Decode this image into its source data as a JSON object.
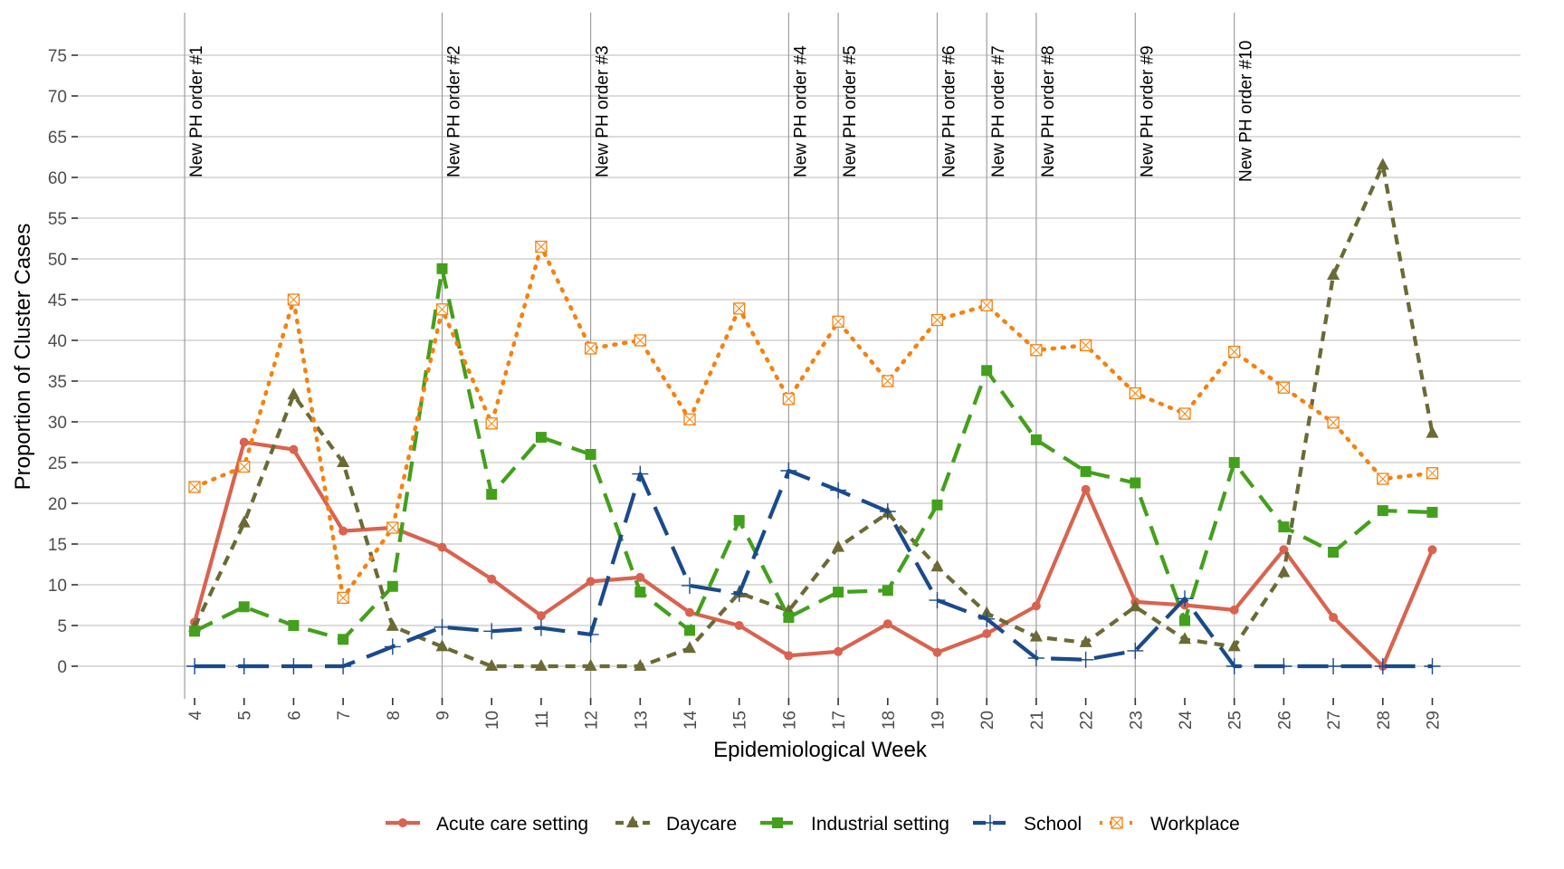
{
  "chart_data": {
    "type": "line",
    "title": "",
    "xlabel": "Epidemiological Week",
    "ylabel": "Proportion of Cluster Cases",
    "x": [
      4,
      5,
      6,
      7,
      8,
      9,
      10,
      11,
      12,
      13,
      14,
      15,
      16,
      17,
      18,
      19,
      20,
      21,
      22,
      23,
      24,
      25,
      26,
      27,
      28,
      29
    ],
    "x_tick_labels": [
      "4",
      "5",
      "6",
      "7",
      "8",
      "9",
      "10",
      "11",
      "12",
      "13",
      "14",
      "15",
      "16",
      "17",
      "18",
      "19",
      "20",
      "21",
      "22",
      "23",
      "24",
      "25",
      "26",
      "27",
      "28",
      "29"
    ],
    "ylim": [
      0,
      75
    ],
    "y_ticks": [
      0,
      5,
      10,
      15,
      20,
      25,
      30,
      35,
      40,
      45,
      50,
      55,
      60,
      65,
      70,
      75
    ],
    "y_tick_labels": [
      "0",
      "5",
      "10",
      "15",
      "20",
      "25",
      "30",
      "35",
      "40",
      "45",
      "50",
      "55",
      "60",
      "65",
      "70",
      "75"
    ],
    "grid": "horizontal",
    "legend_position": "bottom",
    "series": [
      {
        "name": "Acute care setting",
        "color": "#d9634f",
        "line": "solid",
        "marker": "circle",
        "values": [
          5.4,
          27.5,
          26.6,
          16.6,
          17.0,
          14.6,
          10.7,
          6.2,
          10.4,
          10.9,
          6.6,
          5.0,
          1.3,
          1.8,
          5.2,
          1.7,
          4.0,
          7.4,
          21.7,
          7.9,
          7.5,
          6.9,
          14.3,
          6.0,
          0,
          14.3
        ]
      },
      {
        "name": "Daycare",
        "color": "#6b6a36",
        "line": "dashed-short",
        "marker": "triangle",
        "values": [
          4.8,
          17.6,
          33.3,
          25.0,
          4.9,
          2.4,
          0,
          0,
          0,
          0,
          2.2,
          9.0,
          6.8,
          14.6,
          18.8,
          12.2,
          6.5,
          3.6,
          2.9,
          7.3,
          3.3,
          2.4,
          11.5,
          48.0,
          61.5,
          28.6
        ]
      },
      {
        "name": "Industrial setting",
        "color": "#43a01c",
        "line": "dashed",
        "marker": "square",
        "values": [
          4.3,
          7.3,
          5.0,
          3.3,
          9.8,
          48.8,
          21.1,
          28.1,
          26.0,
          9.1,
          4.4,
          17.9,
          6.0,
          9.1,
          9.3,
          19.8,
          36.3,
          27.8,
          23.9,
          22.5,
          5.6,
          25.0,
          17.1,
          14.0,
          19.1,
          18.9
        ]
      },
      {
        "name": "School",
        "color": "#1a4a8a",
        "line": "long-dashed",
        "marker": "plus",
        "values": [
          0,
          0,
          0,
          0,
          2.4,
          4.8,
          4.3,
          4.7,
          3.9,
          23.6,
          9.9,
          8.9,
          24.0,
          21.6,
          19.0,
          8.1,
          5.8,
          1.0,
          0.8,
          1.9,
          8.3,
          0,
          0,
          0,
          0,
          0
        ]
      },
      {
        "name": "Workplace",
        "color": "#f5820f",
        "line": "dotted",
        "marker": "square-x",
        "values": [
          22.0,
          24.5,
          45.0,
          8.4,
          17.0,
          43.8,
          29.8,
          51.5,
          39.0,
          40.0,
          30.3,
          43.9,
          32.8,
          42.3,
          35.0,
          42.5,
          44.3,
          38.8,
          39.4,
          33.5,
          31.0,
          38.6,
          34.2,
          29.9,
          23.0,
          23.7
        ]
      }
    ],
    "annotations": [
      {
        "label": "New PH order #1",
        "week": 3.8
      },
      {
        "label": "New PH order #2",
        "week": 9
      },
      {
        "label": "New PH order #3",
        "week": 12
      },
      {
        "label": "New PH order #4",
        "week": 16
      },
      {
        "label": "New PH order #5",
        "week": 17
      },
      {
        "label": "New PH order #6",
        "week": 19
      },
      {
        "label": "New PH order #7",
        "week": 20
      },
      {
        "label": "New PH order #8",
        "week": 21
      },
      {
        "label": "New PH order #9",
        "week": 23
      },
      {
        "label": "New PH order #10",
        "week": 25
      }
    ]
  }
}
